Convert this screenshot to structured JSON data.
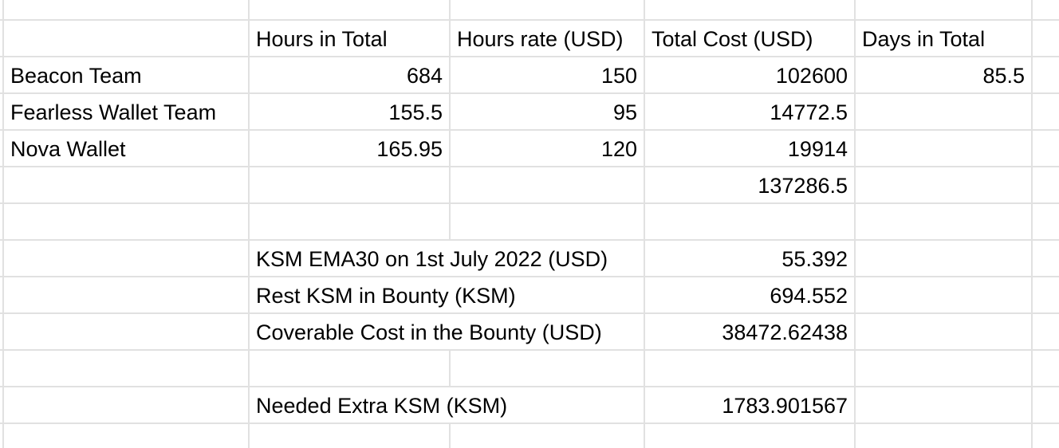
{
  "header": {
    "hours_total": "Hours in Total",
    "hours_rate": "Hours rate (USD)",
    "total_cost": "Total Cost (USD)",
    "days_total": "Days in Total"
  },
  "rows": [
    {
      "name": "Beacon Team",
      "hours": "684",
      "rate": "150",
      "cost": "102600",
      "days": "85.5"
    },
    {
      "name": "Fearless Wallet Team",
      "hours": "155.5",
      "rate": "95",
      "cost": "14772.5",
      "days": ""
    },
    {
      "name": "Nova Wallet",
      "hours": "165.95",
      "rate": "120",
      "cost": "19914",
      "days": ""
    }
  ],
  "sum_total": "137286.5",
  "calc": [
    {
      "label": "KSM EMA30 on 1st July 2022 (USD)",
      "value": "55.392"
    },
    {
      "label": "Rest KSM in Bounty (KSM)",
      "value": "694.552"
    },
    {
      "label": "Coverable Cost in the Bounty (USD)",
      "value": "38472.62438"
    }
  ],
  "needed": {
    "label": "Needed Extra KSM (KSM)",
    "value": "1783.901567"
  }
}
